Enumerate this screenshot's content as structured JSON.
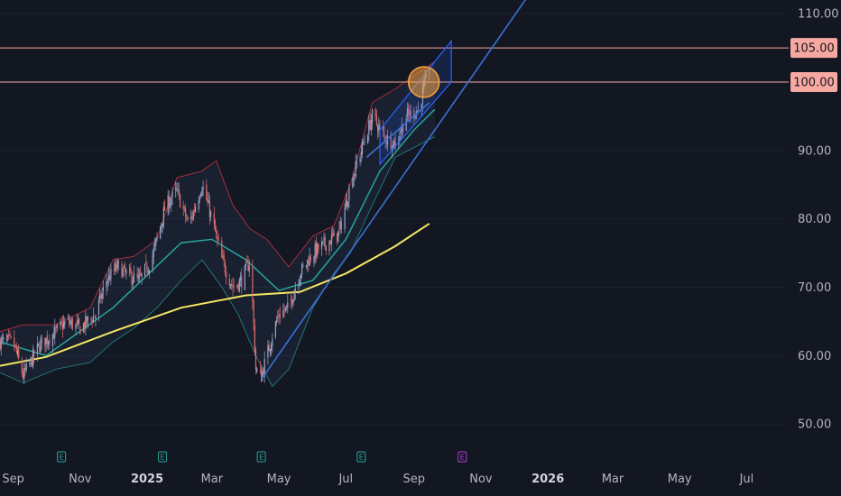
{
  "chart_data": {
    "type": "candlestick",
    "y_axis": {
      "range": [
        45,
        112
      ],
      "ticks": [
        "110.00",
        "105.00",
        "100.00",
        "90.00",
        "80.00",
        "70.00",
        "60.00",
        "50.00"
      ],
      "tick_values": [
        110,
        105,
        100,
        90,
        80,
        70,
        60,
        50
      ]
    },
    "x_axis": {
      "range": [
        "2024-08-20",
        "2026-08-05"
      ],
      "ticks": [
        {
          "date": "2024-09-01",
          "label": "Sep",
          "bold": false
        },
        {
          "date": "2024-11-01",
          "label": "Nov",
          "bold": false
        },
        {
          "date": "2025-01-01",
          "label": "2025",
          "bold": true
        },
        {
          "date": "2025-03-01",
          "label": "Mar",
          "bold": false
        },
        {
          "date": "2025-05-01",
          "label": "May",
          "bold": false
        },
        {
          "date": "2025-07-01",
          "label": "Jul",
          "bold": false
        },
        {
          "date": "2025-09-01",
          "label": "Sep",
          "bold": false
        },
        {
          "date": "2025-11-01",
          "label": "Nov",
          "bold": false
        },
        {
          "date": "2026-01-01",
          "label": "2026",
          "bold": true
        },
        {
          "date": "2026-03-01",
          "label": "Mar",
          "bold": false
        },
        {
          "date": "2026-05-01",
          "label": "May",
          "bold": false
        },
        {
          "date": "2026-07-01",
          "label": "Jul",
          "bold": false
        }
      ]
    },
    "price_path": [
      [
        "2024-08-20",
        62
      ],
      [
        "2024-09-01",
        62
      ],
      [
        "2024-09-10",
        57
      ],
      [
        "2024-09-25",
        61.5
      ],
      [
        "2024-10-10",
        63.5
      ],
      [
        "2024-10-20",
        65
      ],
      [
        "2024-11-01",
        64
      ],
      [
        "2024-11-15",
        66
      ],
      [
        "2024-11-25",
        71
      ],
      [
        "2024-12-05",
        73
      ],
      [
        "2024-12-12",
        72
      ],
      [
        "2024-12-25",
        71
      ],
      [
        "2025-01-05",
        74
      ],
      [
        "2025-01-18",
        82
      ],
      [
        "2025-01-28",
        84
      ],
      [
        "2025-02-08",
        79
      ],
      [
        "2025-02-20",
        85
      ],
      [
        "2025-03-01",
        80
      ],
      [
        "2025-03-10",
        74
      ],
      [
        "2025-03-20",
        70
      ],
      [
        "2025-03-28",
        71
      ],
      [
        "2025-04-05",
        74
      ],
      [
        "2025-04-10",
        58
      ],
      [
        "2025-04-15",
        57
      ],
      [
        "2025-04-25",
        63
      ],
      [
        "2025-05-01",
        66
      ],
      [
        "2025-05-10",
        67
      ],
      [
        "2025-05-20",
        72
      ],
      [
        "2025-06-01",
        75
      ],
      [
        "2025-06-10",
        76
      ],
      [
        "2025-06-25",
        78
      ],
      [
        "2025-07-05",
        85
      ],
      [
        "2025-07-15",
        90
      ],
      [
        "2025-07-25",
        95
      ],
      [
        "2025-08-05",
        92
      ],
      [
        "2025-08-15",
        91
      ],
      [
        "2025-08-25",
        95
      ],
      [
        "2025-09-05",
        96
      ],
      [
        "2025-09-15",
        102
      ]
    ],
    "series": [
      {
        "name": "",
        "color": "#f5e663",
        "points": [
          [
            "2024-08-20",
            58.5
          ],
          [
            "2024-10-01",
            59.8
          ],
          [
            "2024-12-01",
            63.5
          ],
          [
            "2025-02-01",
            67
          ],
          [
            "2025-04-01",
            68.8
          ],
          [
            "2025-05-20",
            69.3
          ],
          [
            "2025-07-01",
            72
          ],
          [
            "2025-08-15",
            76
          ],
          [
            "2025-09-15",
            79.3
          ]
        ]
      },
      {
        "name": "",
        "color": "#26a69a",
        "points": [
          [
            "2024-08-20",
            62
          ],
          [
            "2024-10-01",
            60
          ],
          [
            "2024-12-01",
            67
          ],
          [
            "2025-02-01",
            76.5
          ],
          [
            "2025-03-01",
            77
          ],
          [
            "2025-04-01",
            74
          ],
          [
            "2025-05-01",
            69.5
          ],
          [
            "2025-06-01",
            71
          ],
          [
            "2025-07-01",
            77
          ],
          [
            "2025-08-01",
            87
          ],
          [
            "2025-09-01",
            93
          ],
          [
            "2025-09-20",
            96
          ]
        ]
      }
    ],
    "bollinger": {
      "upper": [
        [
          "2024-08-20",
          63.5
        ],
        [
          "2024-09-10",
          64.5
        ],
        [
          "2024-10-10",
          64.5
        ],
        [
          "2024-11-10",
          67
        ],
        [
          "2024-12-01",
          74
        ],
        [
          "2024-12-20",
          74.5
        ],
        [
          "2025-01-10",
          77
        ],
        [
          "2025-01-28",
          86
        ],
        [
          "2025-02-20",
          87
        ],
        [
          "2025-03-05",
          88.5
        ],
        [
          "2025-03-20",
          82
        ],
        [
          "2025-04-05",
          78.5
        ],
        [
          "2025-04-20",
          77
        ],
        [
          "2025-05-10",
          73
        ],
        [
          "2025-06-01",
          77.5
        ],
        [
          "2025-06-20",
          79
        ],
        [
          "2025-07-05",
          85
        ],
        [
          "2025-07-25",
          97
        ],
        [
          "2025-08-15",
          99
        ],
        [
          "2025-09-20",
          103
        ]
      ],
      "lower": [
        [
          "2024-08-20",
          57.5
        ],
        [
          "2024-09-10",
          56
        ],
        [
          "2024-10-10",
          58
        ],
        [
          "2024-11-10",
          59
        ],
        [
          "2024-12-01",
          62
        ],
        [
          "2024-12-20",
          64
        ],
        [
          "2025-01-10",
          67
        ],
        [
          "2025-02-01",
          71
        ],
        [
          "2025-02-20",
          74
        ],
        [
          "2025-03-10",
          70
        ],
        [
          "2025-03-25",
          66
        ],
        [
          "2025-04-10",
          60
        ],
        [
          "2025-04-25",
          55.5
        ],
        [
          "2025-05-10",
          58
        ],
        [
          "2025-06-01",
          67
        ],
        [
          "2025-06-20",
          72
        ],
        [
          "2025-07-05",
          75
        ],
        [
          "2025-07-25",
          82
        ],
        [
          "2025-08-15",
          89
        ],
        [
          "2025-09-20",
          92
        ]
      ],
      "color": "#f23645"
    },
    "levels": [
      {
        "value": 105,
        "label": "105.00",
        "color": "#f7a8a1"
      },
      {
        "value": 100,
        "label": "100.00",
        "color": "#f7a8a1"
      }
    ],
    "trendlines": [
      {
        "from": [
          "2025-04-15",
          56.5
        ],
        "to": [
          "2026-01-15",
          120
        ],
        "color": "#3b6fd8"
      },
      {
        "from": [
          "2025-07-20",
          89
        ],
        "to": [
          "2025-09-15",
          97
        ],
        "color": "#3b6fd8"
      }
    ],
    "channel": {
      "points": [
        [
          "2025-08-01",
          93
        ],
        [
          "2025-10-05",
          106
        ],
        [
          "2025-10-05",
          100
        ],
        [
          "2025-08-01",
          88
        ]
      ],
      "color": "#2962ff"
    },
    "highlight": {
      "center": [
        "2025-09-10",
        100
      ],
      "color": "#f7a440"
    },
    "event_markers": [
      {
        "date": "2024-10-15",
        "kind": "E",
        "color": "#26a69a"
      },
      {
        "date": "2025-01-15",
        "kind": "E",
        "color": "#26a69a"
      },
      {
        "date": "2025-04-15",
        "kind": "E",
        "color": "#26a69a"
      },
      {
        "date": "2025-07-15",
        "kind": "E",
        "color": "#26a69a"
      },
      {
        "date": "2025-10-15",
        "kind": "E",
        "color": "#b13ddb"
      }
    ]
  }
}
